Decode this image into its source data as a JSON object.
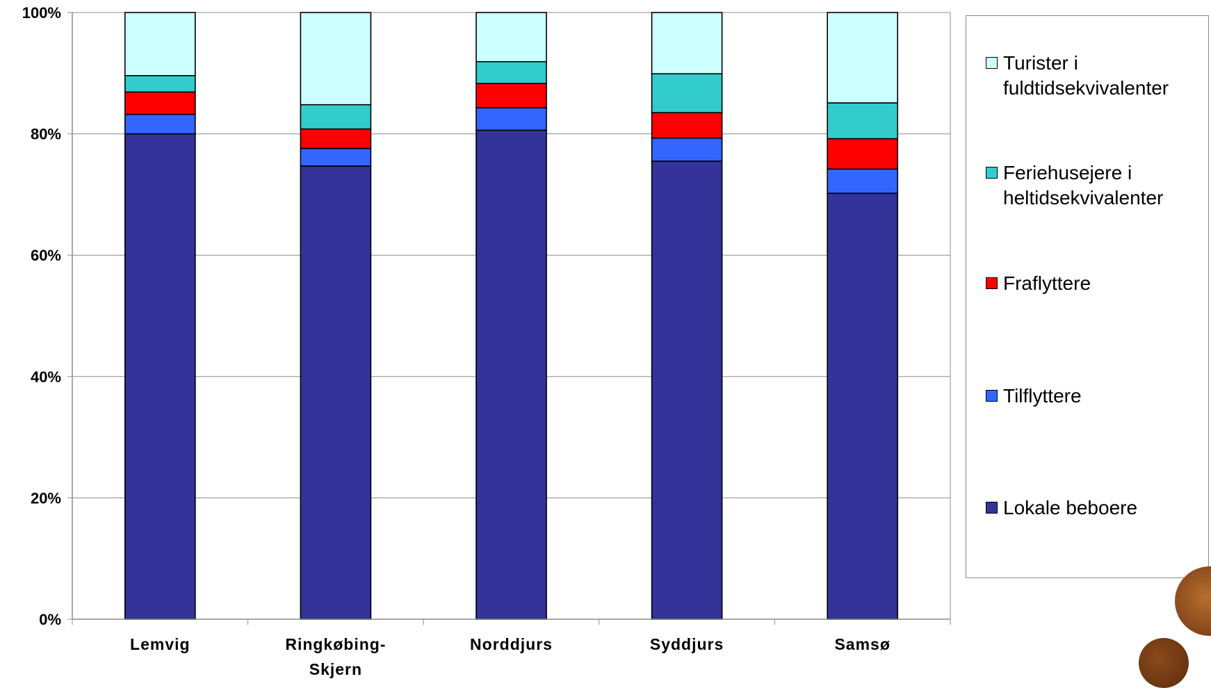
{
  "chart_data": {
    "type": "bar",
    "stacked": true,
    "percent_stacked": true,
    "categories": [
      "Lemvig",
      "Ringkøbing-Skjern",
      "Norddjurs",
      "Syddjurs",
      "Samsø"
    ],
    "category_label_lines": [
      [
        "Lemvig"
      ],
      [
        "Ringkøbing-",
        "Skjern"
      ],
      [
        "Norddjurs"
      ],
      [
        "Syddjurs"
      ],
      [
        "Samsø"
      ]
    ],
    "series": [
      {
        "name": "Lokale beboere",
        "color": "#333399",
        "values": [
          80.0,
          74.7,
          80.6,
          75.5,
          70.2
        ]
      },
      {
        "name": "Tilflyttere",
        "color": "#3366FF",
        "values": [
          3.2,
          2.9,
          3.7,
          3.8,
          4.0
        ]
      },
      {
        "name": "Fraflyttere",
        "color": "#FF0000",
        "values": [
          3.7,
          3.2,
          4.0,
          4.2,
          5.0
        ]
      },
      {
        "name": "Feriehusejere i heltidsekvivalenter",
        "color": "#33CCCC",
        "values": [
          2.7,
          4.0,
          3.6,
          6.4,
          5.9
        ]
      },
      {
        "name": "Turister i fuldtidsekvivalenter",
        "color": "#CCFFFF",
        "values": [
          10.4,
          15.2,
          8.1,
          10.1,
          14.9
        ]
      }
    ],
    "yticks": [
      "0%",
      "20%",
      "40%",
      "60%",
      "80%",
      "100%"
    ],
    "ylim": [
      0,
      100
    ],
    "grid": true,
    "legend_position": "right",
    "title": "",
    "xlabel": "",
    "ylabel": ""
  },
  "legend": [
    {
      "label": "Turister i fuldtidsekvivalenter",
      "lines": [
        "Turister i",
        "fuldtidsekvivalenter"
      ],
      "color": "#CCFFFF",
      "icon": "square-swatch"
    },
    {
      "label": "Feriehusejere i heltidsekvivalenter",
      "lines": [
        "Feriehusejere i",
        "heltidsekvivalenter"
      ],
      "color": "#33CCCC",
      "icon": "square-swatch"
    },
    {
      "label": "Fraflyttere",
      "lines": [
        "Fraflyttere"
      ],
      "color": "#FF0000",
      "icon": "square-swatch"
    },
    {
      "label": "Tilflyttere",
      "lines": [
        "Tilflyttere"
      ],
      "color": "#3366FF",
      "icon": "square-swatch"
    },
    {
      "label": "Lokale beboere",
      "lines": [
        "Lokale beboere"
      ],
      "color": "#333399",
      "icon": "square-swatch"
    }
  ],
  "decor": {
    "logo_icon": "university-seal-icon"
  }
}
